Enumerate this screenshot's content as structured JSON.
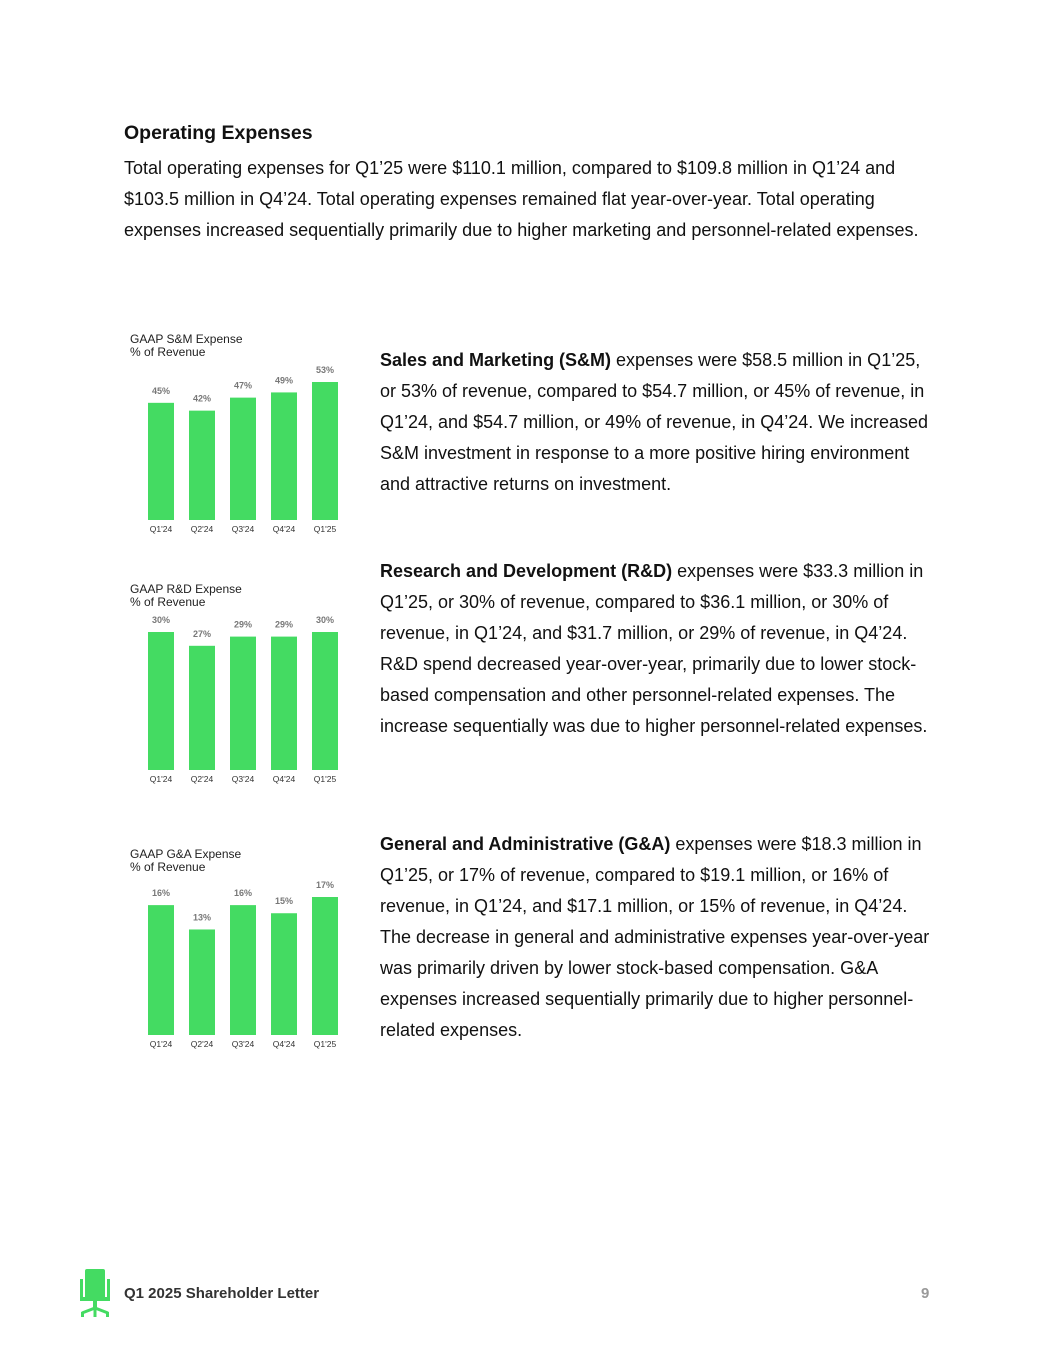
{
  "section": {
    "title": "Operating Expenses",
    "intro": "Total operating expenses for Q1’25 were $110.1 million, compared to $109.8 million in Q1’24 and $103.5 million in Q4’24. Total operating expenses remained flat year-over-year. Total operating expenses increased sequentially primarily due to higher marketing and personnel-related expenses."
  },
  "paragraphs": [
    {
      "lead": "Sales and Marketing (S&M)",
      "text": " expenses were $58.5 million in Q1’25, or 53% of revenue, compared to $54.7 million, or 45% of revenue, in Q1’24, and $54.7 million, or 49% of revenue, in Q4’24. We increased S&M investment in response to a more positive hiring environment and attractive returns on investment."
    },
    {
      "lead": "Research and Development (R&D)",
      "text": " expenses were $33.3 million in Q1’25, or 30% of revenue, compared to $36.1 million, or 30% of revenue, in Q1’24, and $31.7 million, or 29% of revenue, in Q4’24. R&D spend decreased year-over-year, primarily due to lower stock-based compensation and other personnel-related expenses. The increase sequentially was due to higher personnel-related expenses."
    },
    {
      "lead": "General and Administrative (G&A)",
      "text": " expenses were $18.3 million in Q1’25, or 17% of revenue, compared to $19.1 million, or 16% of revenue, in Q1’24, and $17.1 million, or 15% of revenue, in Q4’24. The decrease in general and administrative expenses year-over-year was primarily driven by lower stock-based compensation. G&A expenses increased sequentially primarily due to higher personnel-related expenses."
    }
  ],
  "chart_data": [
    {
      "type": "bar",
      "title": "GAAP S&M Expense\n% of Revenue",
      "title_lines": [
        "GAAP S&M Expense",
        "% of Revenue"
      ],
      "categories": [
        "Q1'24",
        "Q2'24",
        "Q3'24",
        "Q4'24",
        "Q1'25"
      ],
      "values": [
        45,
        42,
        47,
        49,
        53
      ],
      "data_labels": [
        "45%",
        "42%",
        "47%",
        "49%",
        "53%"
      ],
      "color": "#44DB62",
      "grid": false
    },
    {
      "type": "bar",
      "title": "GAAP R&D Expense\n% of Revenue",
      "title_lines": [
        "GAAP R&D Expense",
        "% of Revenue"
      ],
      "categories": [
        "Q1'24",
        "Q2'24",
        "Q3'24",
        "Q4'24",
        "Q1'25"
      ],
      "values": [
        30,
        27,
        29,
        29,
        30
      ],
      "data_labels": [
        "30%",
        "27%",
        "29%",
        "29%",
        "30%"
      ],
      "color": "#44DB62",
      "grid": false
    },
    {
      "type": "bar",
      "title": "GAAP G&A Expense\n% of Revenue",
      "title_lines": [
        "GAAP G&A Expense",
        "% of Revenue"
      ],
      "categories": [
        "Q1'24",
        "Q2'24",
        "Q3'24",
        "Q4'24",
        "Q1'25"
      ],
      "values": [
        16,
        13,
        16,
        15,
        17
      ],
      "data_labels": [
        "16%",
        "13%",
        "16%",
        "15%",
        "17%"
      ],
      "color": "#44DB62",
      "grid": false
    }
  ],
  "footer": {
    "title": "Q1 2025 Shareholder Letter",
    "page": "9",
    "logo_icon": "office-chair-icon",
    "logo_color": "#44DB62"
  }
}
